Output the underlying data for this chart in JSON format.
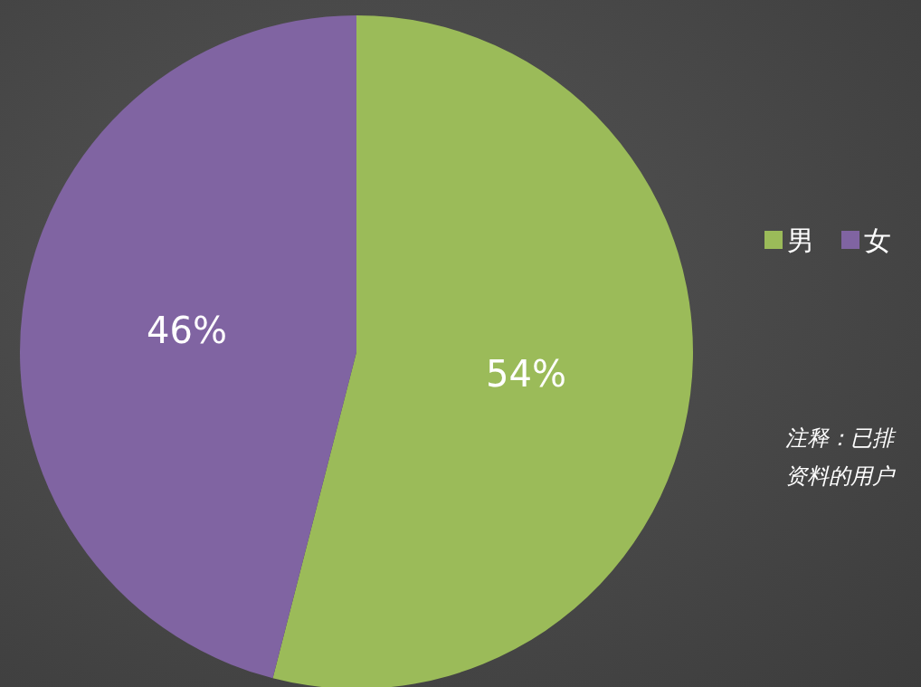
{
  "chart_data": {
    "type": "pie",
    "categories": [
      "男",
      "女"
    ],
    "values": [
      54,
      46
    ],
    "colors": [
      "#9bbb59",
      "#8064a2"
    ],
    "value_labels": [
      "54%",
      "46%"
    ],
    "legend": "right",
    "annotations": [
      "注释：已排",
      "资料的用户"
    ]
  }
}
